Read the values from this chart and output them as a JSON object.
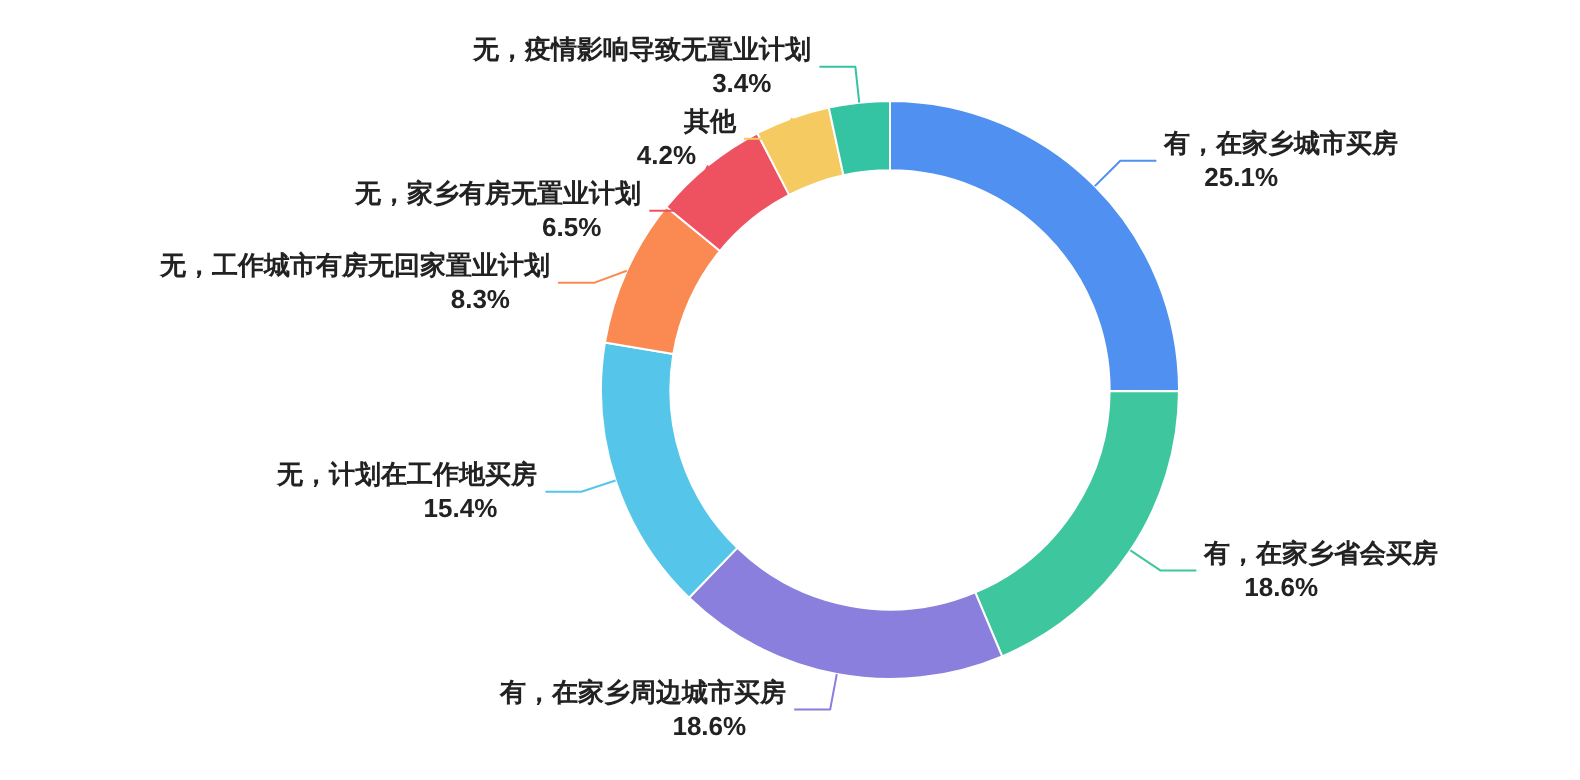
{
  "chart_data": {
    "type": "donut",
    "categories": [
      "有，在家乡城市买房",
      "有，在家乡省会买房",
      "有，在家乡周边城市买房",
      "无，计划在工作地买房",
      "无，工作城市有房无回家置业计划",
      "无，家乡有房无置业计划",
      "其他",
      "无，疫情影响导致无置业计划"
    ],
    "values": [
      25.1,
      18.6,
      18.6,
      15.4,
      8.3,
      6.5,
      4.2,
      3.4
    ],
    "value_labels": [
      "25.1%",
      "18.6%",
      "18.6%",
      "15.4%",
      "8.3%",
      "6.5%",
      "4.2%",
      "3.4%"
    ],
    "colors": [
      "#5090f0",
      "#3ec79e",
      "#8a7fdc",
      "#55c6ea",
      "#fb8a52",
      "#ee5160",
      "#f5ca60",
      "#34c4a4"
    ],
    "legend": false
  }
}
